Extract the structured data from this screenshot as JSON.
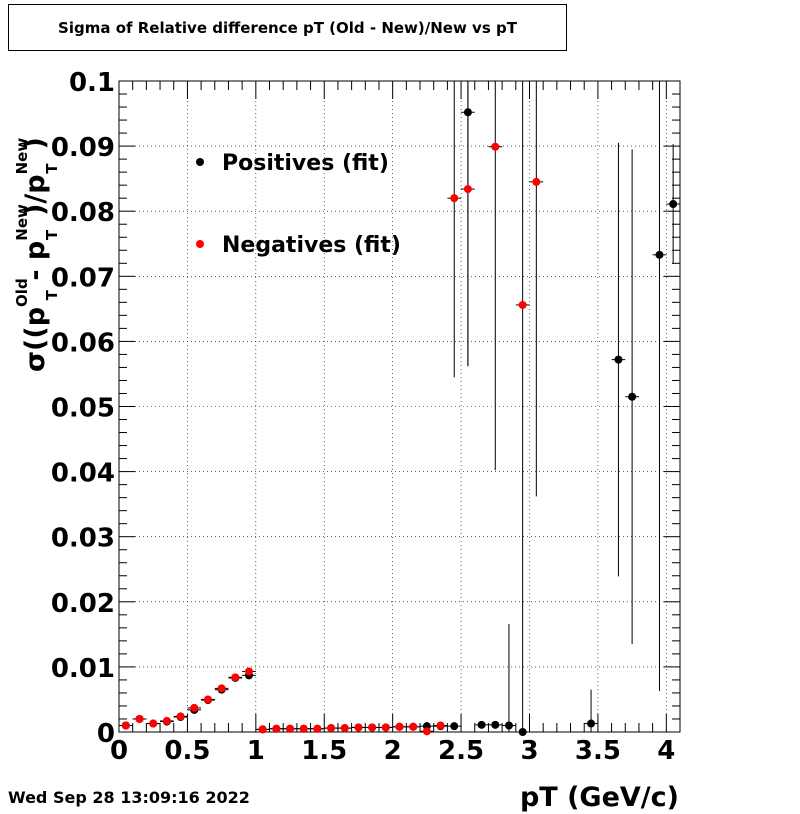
{
  "chart_data": {
    "type": "scatter",
    "title": "Sigma of Relative difference pT (Old - New)/New vs pT",
    "xlabel": "pT (GeV/c)",
    "ylabel_parts": {
      "sigma": "σ((p",
      "old": "Old",
      "t1": "T",
      "minus": " - p",
      "new1": "New",
      "t2": "T",
      "slash": ")/p",
      "new2": "New",
      "t3": "T",
      "close": ")"
    },
    "xlim": [
      0,
      4.1
    ],
    "ylim": [
      0,
      0.1
    ],
    "x_ticks": [
      0,
      0.5,
      1,
      1.5,
      2,
      2.5,
      3,
      3.5,
      4
    ],
    "x_tick_labels": [
      "0",
      "0.5",
      "1",
      "1.5",
      "2",
      "2.5",
      "3",
      "3.5",
      "4"
    ],
    "y_ticks": [
      0,
      0.01,
      0.02,
      0.03,
      0.04,
      0.05,
      0.06,
      0.07,
      0.08,
      0.09,
      0.1
    ],
    "y_tick_labels": [
      "0",
      "0.01",
      "0.02",
      "0.03",
      "0.04",
      "0.05",
      "0.06",
      "0.07",
      "0.08",
      "0.09",
      "0.1"
    ],
    "grid": true,
    "legend_position": "top-left",
    "series": [
      {
        "name": "Positives (fit)",
        "color": "#000000",
        "points": [
          {
            "x": 0.05,
            "y": 0.001,
            "err": 0.0002
          },
          {
            "x": 0.15,
            "y": 0.002,
            "err": 0.0002
          },
          {
            "x": 0.25,
            "y": 0.0013,
            "err": 0.0002
          },
          {
            "x": 0.35,
            "y": 0.0016,
            "err": 0.0002
          },
          {
            "x": 0.45,
            "y": 0.0023,
            "err": 0.0003
          },
          {
            "x": 0.55,
            "y": 0.0034,
            "err": 0.0003
          },
          {
            "x": 0.65,
            "y": 0.0049,
            "err": 0.0003
          },
          {
            "x": 0.75,
            "y": 0.0065,
            "err": 0.0004
          },
          {
            "x": 0.85,
            "y": 0.0083,
            "err": 0.0004
          },
          {
            "x": 0.95,
            "y": 0.0087,
            "err": 0.0005
          },
          {
            "x": 1.05,
            "y": 0.0004,
            "err": 0.0001
          },
          {
            "x": 1.15,
            "y": 0.0005,
            "err": 0.0001
          },
          {
            "x": 1.25,
            "y": 0.0005,
            "err": 0.0001
          },
          {
            "x": 1.35,
            "y": 0.0005,
            "err": 0.0001
          },
          {
            "x": 1.45,
            "y": 0.0005,
            "err": 0.0001
          },
          {
            "x": 1.55,
            "y": 0.0006,
            "err": 0.0001
          },
          {
            "x": 1.65,
            "y": 0.0006,
            "err": 0.0001
          },
          {
            "x": 1.75,
            "y": 0.0007,
            "err": 0.0001
          },
          {
            "x": 1.85,
            "y": 0.0007,
            "err": 0.0001
          },
          {
            "x": 1.95,
            "y": 0.0007,
            "err": 0.0001
          },
          {
            "x": 2.05,
            "y": 0.0008,
            "err": 0.0001
          },
          {
            "x": 2.15,
            "y": 0.0008,
            "err": 0.0001
          },
          {
            "x": 2.25,
            "y": 0.0009,
            "err": 0.0001
          },
          {
            "x": 2.35,
            "y": 0.0009,
            "err": 0.0001
          },
          {
            "x": 2.45,
            "y": 0.0009,
            "err": 0.0001
          },
          {
            "x": 2.55,
            "y": 0.0952,
            "err": 0.039
          },
          {
            "x": 2.65,
            "y": 0.0011,
            "err": 0.0002
          },
          {
            "x": 2.75,
            "y": 0.0011,
            "err": 0.0002
          },
          {
            "x": 2.85,
            "y": 0.001,
            "err": 0.0156
          },
          {
            "x": 2.95,
            "y": 0.0,
            "err": 0.0
          },
          {
            "x": 3.45,
            "y": 0.0013,
            "err": 0.0052
          },
          {
            "x": 3.65,
            "y": 0.0572,
            "err": 0.0333
          },
          {
            "x": 3.75,
            "y": 0.0515,
            "err": 0.038
          },
          {
            "x": 3.95,
            "y": 0.0733,
            "err": 0.067
          },
          {
            "x": 4.05,
            "y": 0.0811,
            "err": 0.0092
          }
        ]
      },
      {
        "name": "Negatives (fit)",
        "color": "#ff0000",
        "points": [
          {
            "x": 0.05,
            "y": 0.001,
            "err": 0.0002
          },
          {
            "x": 0.15,
            "y": 0.002,
            "err": 0.0002
          },
          {
            "x": 0.25,
            "y": 0.0013,
            "err": 0.0002
          },
          {
            "x": 0.35,
            "y": 0.0017,
            "err": 0.0002
          },
          {
            "x": 0.45,
            "y": 0.0024,
            "err": 0.0003
          },
          {
            "x": 0.55,
            "y": 0.0037,
            "err": 0.0003
          },
          {
            "x": 0.65,
            "y": 0.005,
            "err": 0.0003
          },
          {
            "x": 0.75,
            "y": 0.0067,
            "err": 0.0004
          },
          {
            "x": 0.85,
            "y": 0.0084,
            "err": 0.0004
          },
          {
            "x": 0.95,
            "y": 0.0093,
            "err": 0.0005
          },
          {
            "x": 1.05,
            "y": 0.0004,
            "err": 0.0001
          },
          {
            "x": 1.15,
            "y": 0.0005,
            "err": 0.0001
          },
          {
            "x": 1.25,
            "y": 0.0005,
            "err": 0.0001
          },
          {
            "x": 1.35,
            "y": 0.0005,
            "err": 0.0001
          },
          {
            "x": 1.45,
            "y": 0.0005,
            "err": 0.0001
          },
          {
            "x": 1.55,
            "y": 0.0006,
            "err": 0.0001
          },
          {
            "x": 1.65,
            "y": 0.0006,
            "err": 0.0001
          },
          {
            "x": 1.75,
            "y": 0.0007,
            "err": 0.0001
          },
          {
            "x": 1.85,
            "y": 0.0007,
            "err": 0.0001
          },
          {
            "x": 1.95,
            "y": 0.0007,
            "err": 0.0001
          },
          {
            "x": 2.05,
            "y": 0.0008,
            "err": 0.0001
          },
          {
            "x": 2.15,
            "y": 0.0008,
            "err": 0.0001
          },
          {
            "x": 2.25,
            "y": 0.0001,
            "err": 0.0001
          },
          {
            "x": 2.35,
            "y": 0.001,
            "err": 0.0001
          },
          {
            "x": 2.45,
            "y": 0.082,
            "err": 0.0275
          },
          {
            "x": 2.55,
            "y": 0.0834,
            "err": 0.0272
          },
          {
            "x": 2.75,
            "y": 0.0899,
            "err": 0.0497
          },
          {
            "x": 2.95,
            "y": 0.0656,
            "err": 0.0656
          },
          {
            "x": 3.05,
            "y": 0.0845,
            "err": 0.0483
          }
        ]
      }
    ]
  },
  "footer": {
    "timestamp": "Wed Sep 28 13:09:16 2022"
  }
}
